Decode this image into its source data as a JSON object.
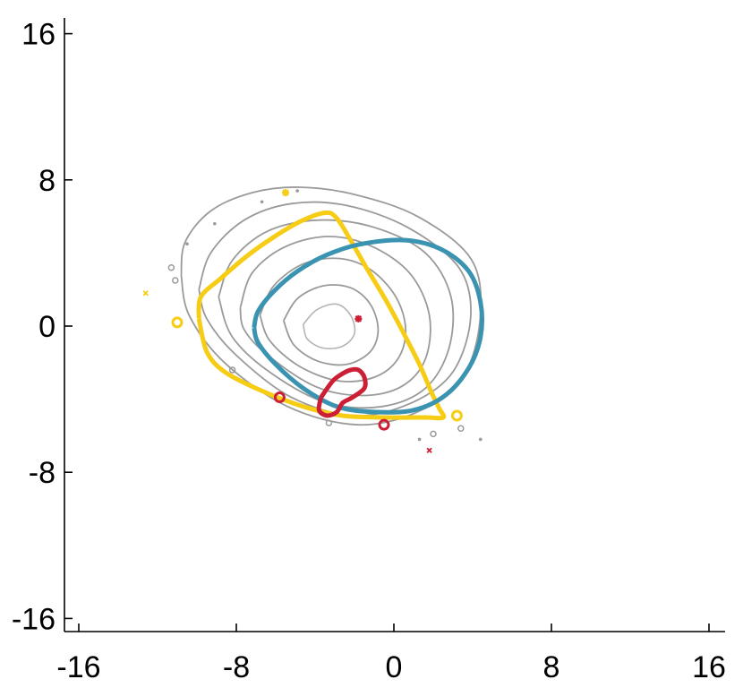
{
  "chart_data": {
    "type": "contour",
    "title": "",
    "xlabel": "",
    "ylabel": "",
    "xlim": [
      -16.5,
      16.5
    ],
    "ylim": [
      -16.5,
      16.5
    ],
    "grid": false,
    "legend": "none",
    "x_ticks": [
      -16,
      -8,
      0,
      8,
      16
    ],
    "y_ticks": [
      16,
      8,
      0,
      -8,
      -16
    ],
    "x_tick_labels": [
      "-16",
      "-8",
      "0",
      "8",
      "16"
    ],
    "y_tick_labels": [
      "16",
      "8",
      "0",
      "-8",
      "-16"
    ],
    "colors": {
      "gray": "#9a9a9a",
      "gray_light": "#b4b4b4",
      "yellow": "#f7cc14",
      "blue": "#3a93b0",
      "red": "#cc1f36"
    },
    "gray_contours": [
      [
        [
          -10.8,
          2.8
        ],
        [
          -10.6,
          4.6
        ],
        [
          -9.3,
          6.3
        ],
        [
          -7.2,
          7.3
        ],
        [
          -4.8,
          7.6
        ],
        [
          -2.0,
          7.2
        ],
        [
          1.2,
          6.0
        ],
        [
          3.9,
          3.7
        ],
        [
          4.4,
          0.7
        ],
        [
          3.6,
          -2.6
        ],
        [
          1.4,
          -4.6
        ],
        [
          -1.8,
          -5.4
        ],
        [
          -5.4,
          -4.4
        ],
        [
          -8.6,
          -2.0
        ],
        [
          -10.4,
          0.6
        ],
        [
          -10.8,
          2.8
        ]
      ],
      [
        [
          -9.9,
          2.0
        ],
        [
          -9.3,
          4.0
        ],
        [
          -7.6,
          5.8
        ],
        [
          -5.2,
          6.7
        ],
        [
          -2.4,
          6.6
        ],
        [
          0.7,
          5.4
        ],
        [
          3.3,
          3.2
        ],
        [
          3.9,
          0.5
        ],
        [
          3.0,
          -2.5
        ],
        [
          0.9,
          -4.2
        ],
        [
          -2.0,
          -4.9
        ],
        [
          -5.2,
          -3.9
        ],
        [
          -8.0,
          -1.6
        ],
        [
          -9.5,
          0.4
        ],
        [
          -9.9,
          2.0
        ]
      ],
      [
        [
          -8.9,
          1.6
        ],
        [
          -8.2,
          3.6
        ],
        [
          -6.4,
          5.2
        ],
        [
          -3.8,
          5.8
        ],
        [
          -1.0,
          5.4
        ],
        [
          1.6,
          4.0
        ],
        [
          2.9,
          1.6
        ],
        [
          2.8,
          -1.2
        ],
        [
          1.6,
          -3.4
        ],
        [
          -0.6,
          -4.4
        ],
        [
          -3.4,
          -4.2
        ],
        [
          -6.2,
          -2.6
        ],
        [
          -8.2,
          -0.6
        ],
        [
          -8.9,
          1.6
        ]
      ],
      [
        [
          -7.8,
          1.0
        ],
        [
          -7.2,
          2.9
        ],
        [
          -5.6,
          4.3
        ],
        [
          -3.4,
          4.9
        ],
        [
          -1.2,
          4.4
        ],
        [
          0.8,
          2.9
        ],
        [
          1.8,
          0.6
        ],
        [
          1.6,
          -1.8
        ],
        [
          0.4,
          -3.3
        ],
        [
          -1.6,
          -3.8
        ],
        [
          -4.0,
          -3.3
        ],
        [
          -6.4,
          -1.6
        ],
        [
          -7.6,
          -0.2
        ],
        [
          -7.8,
          1.0
        ]
      ],
      [
        [
          -6.8,
          0.6
        ],
        [
          -6.1,
          2.2
        ],
        [
          -4.6,
          3.4
        ],
        [
          -2.8,
          3.7
        ],
        [
          -1.2,
          3.1
        ],
        [
          0.1,
          1.6
        ],
        [
          0.6,
          -0.2
        ],
        [
          0.2,
          -1.8
        ],
        [
          -1.0,
          -2.8
        ],
        [
          -2.8,
          -3.0
        ],
        [
          -4.8,
          -2.2
        ],
        [
          -6.3,
          -0.8
        ],
        [
          -6.8,
          0.6
        ]
      ],
      [
        [
          -5.6,
          0.3
        ],
        [
          -4.9,
          1.5
        ],
        [
          -3.6,
          2.2
        ],
        [
          -2.2,
          2.1
        ],
        [
          -1.2,
          1.2
        ],
        [
          -0.8,
          -0.2
        ],
        [
          -1.2,
          -1.4
        ],
        [
          -2.4,
          -2.1
        ],
        [
          -3.9,
          -1.9
        ],
        [
          -5.1,
          -1.0
        ],
        [
          -5.6,
          0.3
        ]
      ]
    ],
    "gray_light_contours": [
      [
        [
          -4.6,
          0.1
        ],
        [
          -3.9,
          0.9
        ],
        [
          -2.9,
          1.2
        ],
        [
          -2.2,
          0.6
        ],
        [
          -2.0,
          -0.4
        ],
        [
          -2.6,
          -1.1
        ],
        [
          -3.6,
          -1.2
        ],
        [
          -4.4,
          -0.7
        ],
        [
          -4.6,
          0.1
        ]
      ]
    ],
    "yellow_contour": [
      [
        -9.9,
        0.4
      ],
      [
        -9.8,
        1.6
      ],
      [
        -8.8,
        2.6
      ],
      [
        -7.5,
        3.8
      ],
      [
        -6.2,
        4.8
      ],
      [
        -4.8,
        5.7
      ],
      [
        -3.5,
        6.2
      ],
      [
        -2.9,
        5.9
      ],
      [
        -2.2,
        4.7
      ],
      [
        -1.4,
        3.2
      ],
      [
        -0.4,
        1.4
      ],
      [
        0.5,
        -0.4
      ],
      [
        1.3,
        -2.1
      ],
      [
        1.9,
        -3.6
      ],
      [
        2.3,
        -4.5
      ],
      [
        2.5,
        -5.0
      ],
      [
        1.6,
        -5.0
      ],
      [
        -0.4,
        -5.0
      ],
      [
        -2.6,
        -4.9
      ],
      [
        -4.6,
        -4.4
      ],
      [
        -6.8,
        -3.5
      ],
      [
        -8.6,
        -2.5
      ],
      [
        -9.5,
        -1.4
      ],
      [
        -9.9,
        0.4
      ]
    ],
    "blue_contour": [
      [
        -7.1,
        -0.1
      ],
      [
        -6.9,
        0.8
      ],
      [
        -6.1,
        1.9
      ],
      [
        -4.9,
        3.0
      ],
      [
        -3.4,
        3.9
      ],
      [
        -1.6,
        4.5
      ],
      [
        0.6,
        4.7
      ],
      [
        2.4,
        4.2
      ],
      [
        3.8,
        3.0
      ],
      [
        4.4,
        1.3
      ],
      [
        4.4,
        -0.6
      ],
      [
        3.8,
        -2.3
      ],
      [
        2.6,
        -3.8
      ],
      [
        1.0,
        -4.6
      ],
      [
        -1.0,
        -4.7
      ],
      [
        -2.9,
        -4.4
      ],
      [
        -4.6,
        -3.4
      ],
      [
        -6.0,
        -2.1
      ],
      [
        -6.9,
        -0.9
      ],
      [
        -7.1,
        -0.1
      ]
    ],
    "red_contour": [
      [
        -3.7,
        -3.9
      ],
      [
        -3.1,
        -3.0
      ],
      [
        -2.6,
        -2.6
      ],
      [
        -2.2,
        -2.4
      ],
      [
        -1.8,
        -2.4
      ],
      [
        -1.5,
        -2.8
      ],
      [
        -1.5,
        -3.4
      ],
      [
        -2.1,
        -3.9
      ],
      [
        -2.6,
        -4.2
      ],
      [
        -2.9,
        -4.7
      ],
      [
        -3.4,
        -4.9
      ],
      [
        -3.8,
        -4.6
      ],
      [
        -3.7,
        -3.9
      ]
    ],
    "small_markers": [
      {
        "color": "yellow",
        "shape": "ring",
        "x": -11.0,
        "y": 0.2
      },
      {
        "color": "yellow",
        "shape": "ring",
        "x": 3.2,
        "y": -4.9
      },
      {
        "color": "yellow",
        "shape": "star",
        "x": -5.5,
        "y": 7.3
      },
      {
        "color": "yellow",
        "shape": "cross",
        "x": -12.6,
        "y": 1.8
      },
      {
        "color": "red",
        "shape": "ring",
        "x": -5.8,
        "y": -3.9
      },
      {
        "color": "red",
        "shape": "ring",
        "x": -0.5,
        "y": -5.4
      },
      {
        "color": "red",
        "shape": "star",
        "x": -1.8,
        "y": 0.4
      },
      {
        "color": "red",
        "shape": "cross",
        "x": 1.8,
        "y": -6.8
      },
      {
        "color": "gray",
        "shape": "ring",
        "x": -11.3,
        "y": 3.2
      },
      {
        "color": "gray",
        "shape": "ring",
        "x": -11.1,
        "y": 2.5
      },
      {
        "color": "gray",
        "shape": "ring",
        "x": -8.2,
        "y": -2.4
      },
      {
        "color": "gray",
        "shape": "ring",
        "x": -3.3,
        "y": -5.3
      },
      {
        "color": "gray",
        "shape": "ring",
        "x": 2.0,
        "y": -5.9
      },
      {
        "color": "gray",
        "shape": "ring",
        "x": 3.4,
        "y": -5.6
      },
      {
        "color": "gray",
        "shape": "dot",
        "x": -6.7,
        "y": 6.8
      },
      {
        "color": "gray",
        "shape": "dot",
        "x": -9.1,
        "y": 5.6
      },
      {
        "color": "gray",
        "shape": "dot",
        "x": -10.5,
        "y": 4.5
      },
      {
        "color": "gray",
        "shape": "dot",
        "x": 1.3,
        "y": -6.2
      },
      {
        "color": "gray",
        "shape": "dot",
        "x": 4.4,
        "y": -6.2
      },
      {
        "color": "gray",
        "shape": "dot",
        "x": -4.9,
        "y": 7.4
      }
    ]
  }
}
